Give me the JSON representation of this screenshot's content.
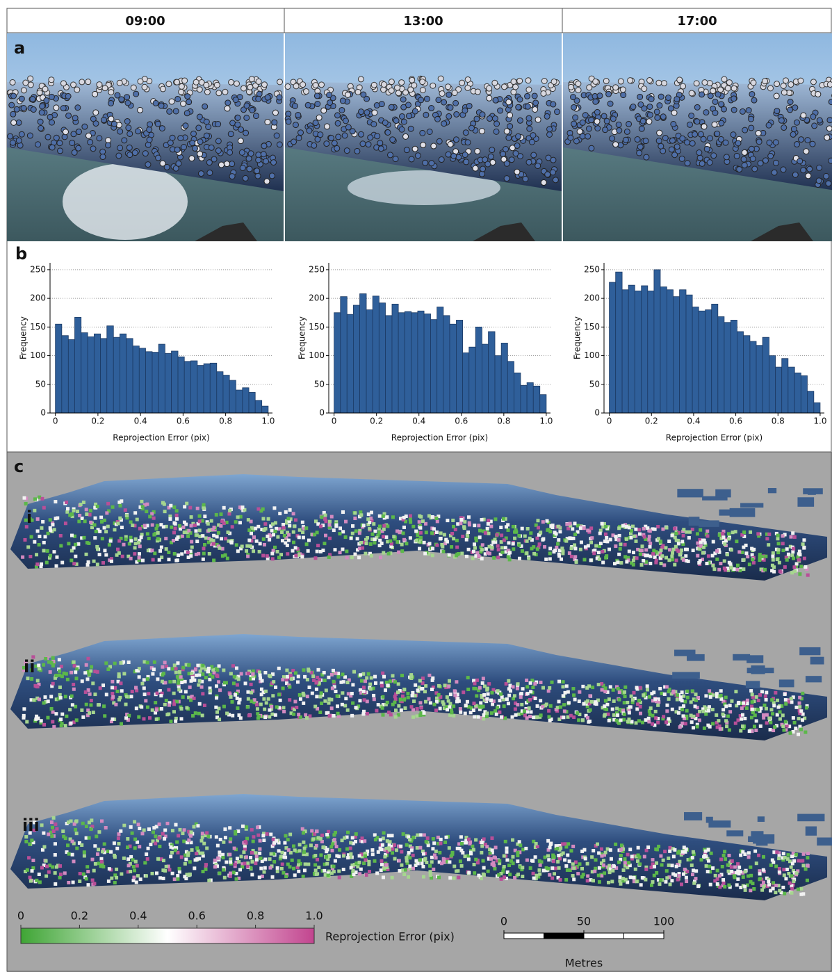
{
  "header": {
    "columns": [
      "09:00",
      "13:00",
      "17:00"
    ]
  },
  "panels": {
    "a": "a",
    "b": "b",
    "c": "c",
    "views": [
      "i",
      "ii",
      "iii"
    ]
  },
  "chart_data": [
    {
      "type": "histogram",
      "xlabel": "Reprojection Error (pix)",
      "ylabel": "Frequency",
      "color": "#2f5f9a",
      "bins": [
        0,
        0.03,
        0.061,
        0.091,
        0.121,
        0.152,
        0.182,
        0.212,
        0.242,
        0.273,
        0.303,
        0.333,
        0.364,
        0.394,
        0.424,
        0.455,
        0.485,
        0.515,
        0.545,
        0.576,
        0.606,
        0.636,
        0.667,
        0.697,
        0.727,
        0.758,
        0.788,
        0.818,
        0.848,
        0.879,
        0.909,
        0.939,
        0.97,
        1.0
      ],
      "values": [
        155,
        135,
        128,
        167,
        140,
        133,
        138,
        130,
        152,
        132,
        138,
        130,
        117,
        113,
        107,
        106,
        120,
        104,
        108,
        98,
        90,
        91,
        83,
        86,
        87,
        72,
        66,
        57,
        40,
        44,
        36,
        22,
        12
      ],
      "xlim": [
        -0.025,
        1.02
      ],
      "ylim": [
        0,
        262
      ],
      "xticks": [
        0,
        0.2,
        0.4,
        0.6,
        0.8,
        {
          "value": 1,
          "label": "1.0"
        }
      ],
      "yticks": [
        0,
        50,
        100,
        150,
        200,
        250
      ],
      "grid": true
    },
    {
      "type": "histogram",
      "xlabel": "Reprojection Error (pix)",
      "ylabel": "Frequency",
      "color": "#2f5f9a",
      "bins": [
        0,
        0.03,
        0.061,
        0.091,
        0.121,
        0.152,
        0.182,
        0.212,
        0.242,
        0.273,
        0.303,
        0.333,
        0.364,
        0.394,
        0.424,
        0.455,
        0.485,
        0.515,
        0.545,
        0.576,
        0.606,
        0.636,
        0.667,
        0.697,
        0.727,
        0.758,
        0.788,
        0.818,
        0.848,
        0.879,
        0.909,
        0.939,
        0.97,
        1.0
      ],
      "values": [
        175,
        203,
        172,
        188,
        208,
        180,
        204,
        192,
        170,
        190,
        175,
        177,
        175,
        178,
        173,
        163,
        185,
        170,
        155,
        162,
        105,
        115,
        150,
        120,
        142,
        100,
        122,
        90,
        70,
        48,
        53,
        47,
        32
      ],
      "xlim": [
        -0.025,
        1.02
      ],
      "ylim": [
        0,
        262
      ],
      "xticks": [
        0,
        0.2,
        0.4,
        0.6,
        0.8,
        {
          "value": 1,
          "label": "1.0"
        }
      ],
      "yticks": [
        0,
        50,
        100,
        150,
        200,
        250
      ],
      "grid": true
    },
    {
      "type": "histogram",
      "xlabel": "Reprojection Error (pix)",
      "ylabel": "Frequency",
      "color": "#2f5f9a",
      "bins": [
        0,
        0.03,
        0.061,
        0.091,
        0.121,
        0.152,
        0.182,
        0.212,
        0.242,
        0.273,
        0.303,
        0.333,
        0.364,
        0.394,
        0.424,
        0.455,
        0.485,
        0.515,
        0.545,
        0.576,
        0.606,
        0.636,
        0.667,
        0.697,
        0.727,
        0.758,
        0.788,
        0.818,
        0.848,
        0.879,
        0.909,
        0.939,
        0.97,
        1.0
      ],
      "values": [
        228,
        246,
        215,
        223,
        213,
        222,
        213,
        250,
        220,
        215,
        203,
        215,
        206,
        185,
        178,
        180,
        190,
        168,
        158,
        162,
        142,
        135,
        125,
        118,
        132,
        100,
        80,
        95,
        80,
        70,
        65,
        38,
        18
      ],
      "xlim": [
        -0.025,
        1.02
      ],
      "ylim": [
        0,
        262
      ],
      "xticks": [
        0,
        0.2,
        0.4,
        0.6,
        0.8,
        {
          "value": 1,
          "label": "1.0"
        }
      ],
      "yticks": [
        0,
        50,
        100,
        150,
        200,
        250
      ],
      "grid": true
    }
  ],
  "colorbar": {
    "label": "Reprojection Error (pix)",
    "ticks": [
      0,
      0.2,
      0.4,
      0.6,
      0.8,
      {
        "value": 1,
        "label": "1.0"
      }
    ],
    "colors": [
      "#3fa535",
      "#ffffff",
      "#c2458f"
    ]
  },
  "scalebar": {
    "label": "Metres",
    "ticks": [
      0,
      50,
      100
    ]
  }
}
